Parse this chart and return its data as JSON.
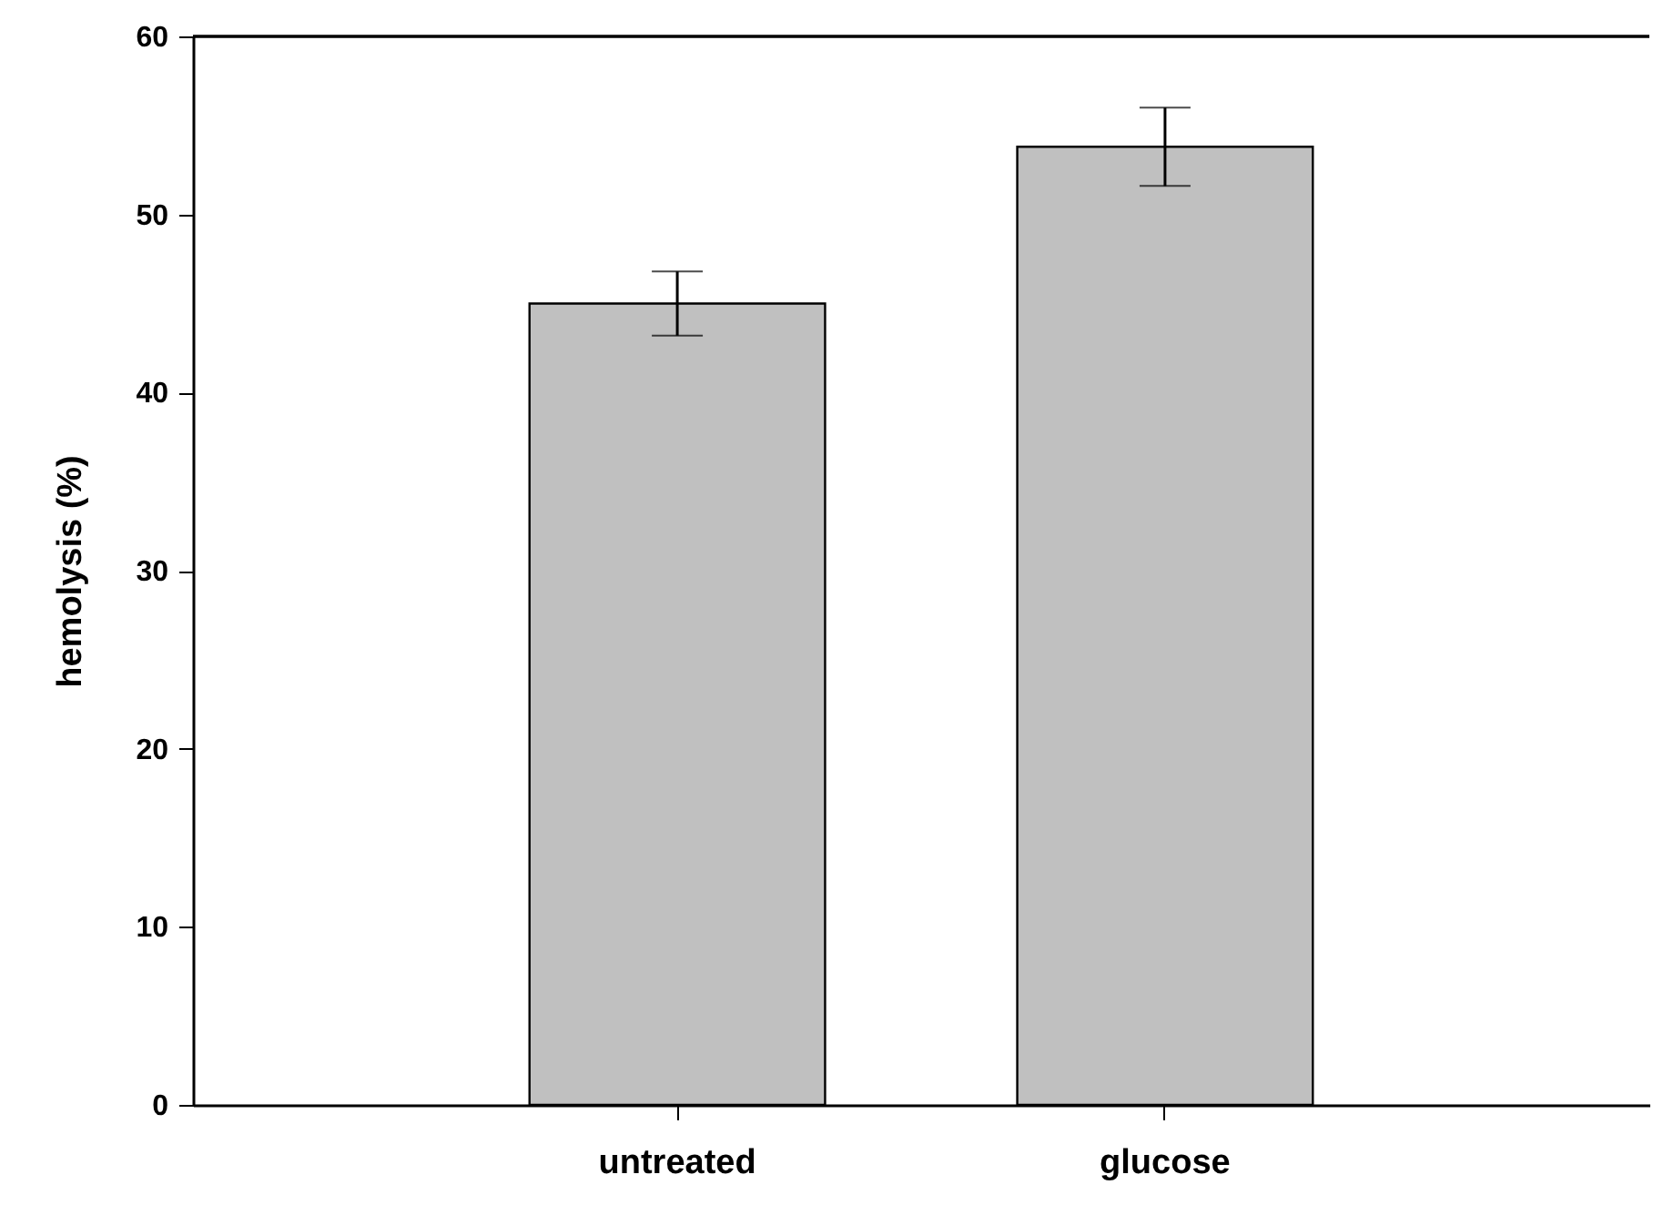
{
  "chart_data": {
    "type": "bar",
    "ylabel": "hemolysis (%)",
    "categories": [
      "untreated",
      "glucose"
    ],
    "values": [
      45.0,
      53.8
    ],
    "errors": [
      1.8,
      2.2
    ],
    "color": "#c0c0c0",
    "ylim": [
      0,
      60
    ],
    "yticks": [
      0,
      10,
      20,
      30,
      40,
      50,
      60
    ],
    "grid": false
  }
}
